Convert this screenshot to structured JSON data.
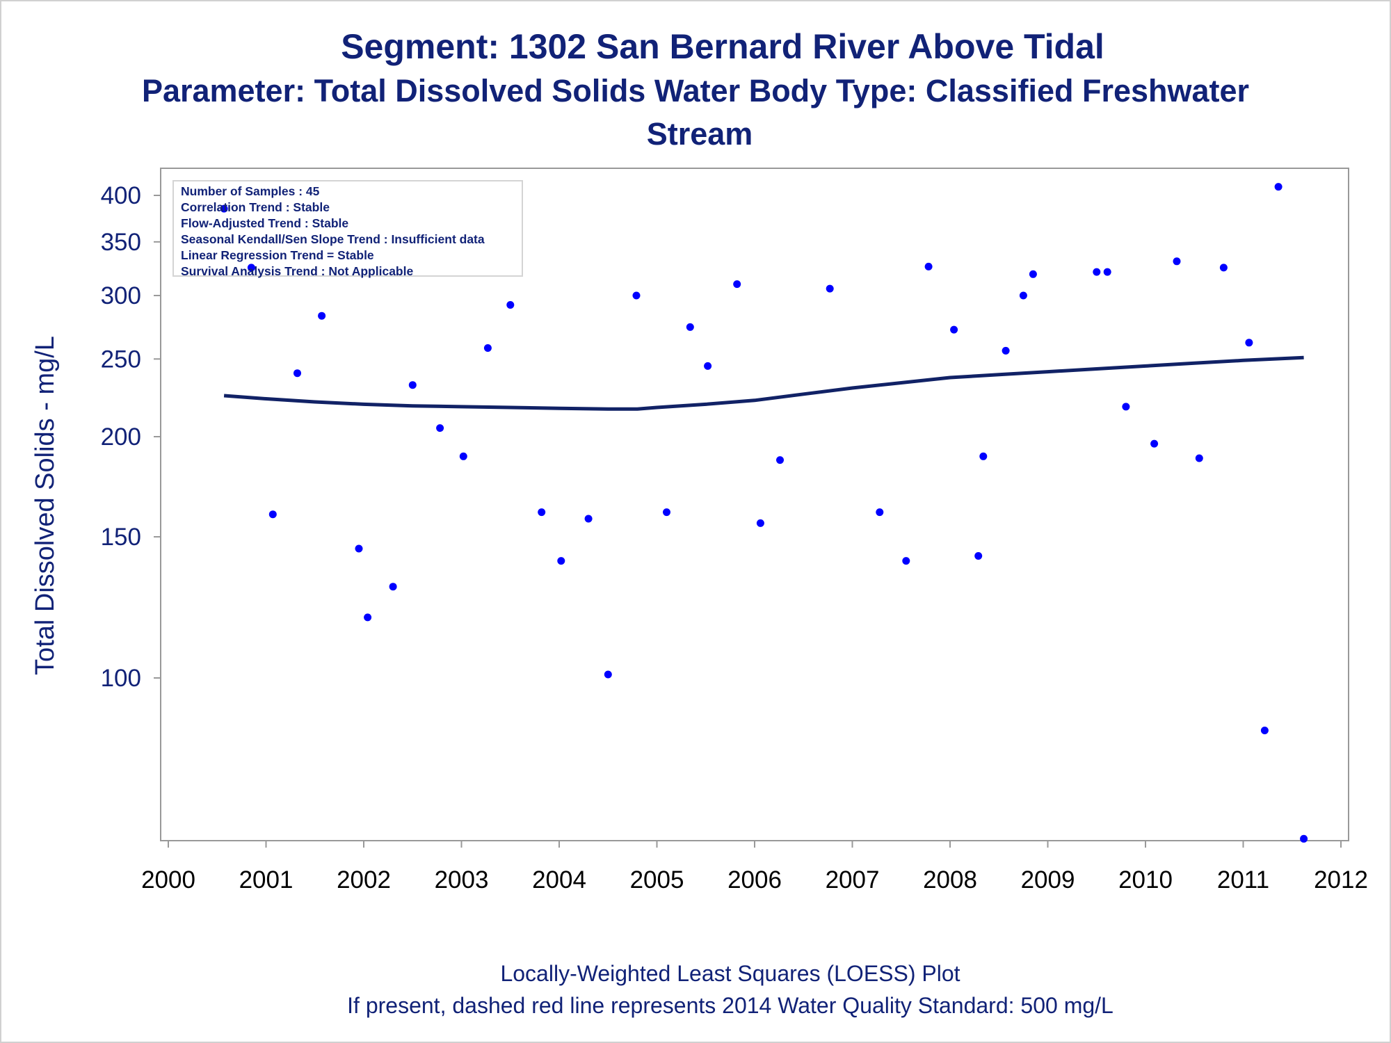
{
  "titles": {
    "line1": "Segment: 1302  San Bernard River Above Tidal",
    "line2": "Parameter: Total Dissolved Solids   Water Body Type: Classified Freshwater",
    "line3": "Stream"
  },
  "stats_box": {
    "lines": [
      "Number of Samples : 45",
      "Correlation Trend : Stable",
      "Flow-Adjusted Trend : Stable",
      "Seasonal Kendall/Sen Slope Trend : Insufficient data",
      "Linear Regression Trend = Stable",
      "Survival Analysis Trend : Not Applicable"
    ]
  },
  "footnotes": {
    "line1": "Locally-Weighted Least Squares (LOESS) Plot",
    "line2": "If present, dashed red line represents 2014 Water Quality Standard: 500   mg/L"
  },
  "colors": {
    "points": "#0000ff",
    "loess": "#112266",
    "text": "#112277",
    "axis": "#999999"
  },
  "chart_data": {
    "type": "scatter",
    "title": "Segment: 1302  San Bernard River Above Tidal",
    "xlabel": "",
    "ylabel": "Total Dissolved Solids - mg/L",
    "yscale": "log",
    "xlim": [
      2000,
      2012
    ],
    "ylim": [
      62,
      420
    ],
    "xticks": [
      2000,
      2001,
      2002,
      2003,
      2004,
      2005,
      2006,
      2007,
      2008,
      2009,
      2010,
      2011,
      2012
    ],
    "yticks": [
      100,
      150,
      200,
      250,
      300,
      350,
      400
    ],
    "grid": false,
    "series": [
      {
        "type": "scatter",
        "points": [
          [
            2000.57,
            385
          ],
          [
            2000.85,
            325
          ],
          [
            2001.07,
            160
          ],
          [
            2001.32,
            240
          ],
          [
            2001.57,
            283
          ],
          [
            2001.95,
            145
          ],
          [
            2002.04,
            119
          ],
          [
            2002.3,
            130
          ],
          [
            2002.5,
            232
          ],
          [
            2002.78,
            205
          ],
          [
            2003.02,
            189
          ],
          [
            2003.27,
            258
          ],
          [
            2003.5,
            292
          ],
          [
            2003.82,
            161
          ],
          [
            2004.02,
            140
          ],
          [
            2004.3,
            158
          ],
          [
            2004.5,
            101
          ],
          [
            2004.79,
            300
          ],
          [
            2005.1,
            161
          ],
          [
            2005.34,
            274
          ],
          [
            2005.52,
            245
          ],
          [
            2005.82,
            310
          ],
          [
            2006.06,
            156
          ],
          [
            2006.26,
            187
          ],
          [
            2006.77,
            306
          ],
          [
            2007.28,
            161
          ],
          [
            2007.55,
            140
          ],
          [
            2007.78,
            326
          ],
          [
            2008.04,
            272
          ],
          [
            2008.29,
            142
          ],
          [
            2008.34,
            189
          ],
          [
            2008.57,
            256
          ],
          [
            2008.75,
            300
          ],
          [
            2008.85,
            319
          ],
          [
            2009.5,
            321
          ],
          [
            2009.61,
            321
          ],
          [
            2009.8,
            218
          ],
          [
            2010.09,
            196
          ],
          [
            2010.32,
            331
          ],
          [
            2010.55,
            188
          ],
          [
            2010.8,
            325
          ],
          [
            2011.06,
            262
          ],
          [
            2011.22,
            86
          ],
          [
            2011.36,
            410
          ],
          [
            2011.62,
            63
          ]
        ]
      },
      {
        "type": "line",
        "points": [
          [
            2000.57,
            225
          ],
          [
            2001.0,
            223
          ],
          [
            2001.5,
            221
          ],
          [
            2002.0,
            219.5
          ],
          [
            2002.5,
            218.5
          ],
          [
            2003.0,
            218
          ],
          [
            2003.5,
            217.5
          ],
          [
            2004.0,
            217
          ],
          [
            2004.5,
            216.5
          ],
          [
            2004.8,
            216.5
          ],
          [
            2005.0,
            217.5
          ],
          [
            2005.5,
            219.5
          ],
          [
            2006.0,
            222
          ],
          [
            2006.5,
            226
          ],
          [
            2007.0,
            230
          ],
          [
            2007.5,
            233.5
          ],
          [
            2008.0,
            237
          ],
          [
            2008.5,
            239
          ],
          [
            2009.0,
            241
          ],
          [
            2009.5,
            243
          ],
          [
            2010.0,
            245
          ],
          [
            2010.5,
            247
          ],
          [
            2011.0,
            249
          ],
          [
            2011.62,
            251
          ]
        ]
      }
    ]
  }
}
